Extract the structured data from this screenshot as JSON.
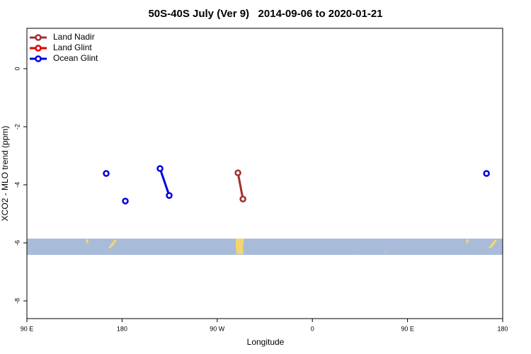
{
  "chart_data": {
    "type": "line",
    "title": "50S-40S July (Ver 9)   2014-09-06 to 2020-01-21",
    "xlabel": "Longitude",
    "ylabel": "XCO2 - MLO trend (ppm)",
    "xlim": [
      90,
      540
    ],
    "xticks": [
      {
        "value": 90,
        "label": "90 E"
      },
      180,
      {
        "value": 270,
        "label": "90 W"
      },
      {
        "value": 360,
        "label": "0"
      },
      {
        "value": 450,
        "label": "90 E"
      },
      {
        "value": 540,
        "label": "180"
      }
    ],
    "ylim": [
      -8.61,
      1.39
    ],
    "yticks": [
      0,
      -2,
      -4,
      -6,
      -8
    ],
    "legend": "upper left",
    "series": [
      {
        "name": "Land Nadir",
        "color": "#a0302c",
        "x": [
          289.6,
          294.3
        ],
        "values": [
          -3.59,
          -4.49
        ]
      },
      {
        "name": "Land Glint",
        "color": "#e00000",
        "x": [],
        "values": []
      },
      {
        "name": "Ocean Glint",
        "color": "#0000e0",
        "x": [
          165,
          null,
          183.1,
          null,
          215.9,
          224.6,
          null,
          524.7
        ],
        "values": [
          -3.61,
          null,
          -4.56,
          null,
          -3.44,
          -4.37,
          null,
          -3.61
        ]
      }
    ]
  }
}
